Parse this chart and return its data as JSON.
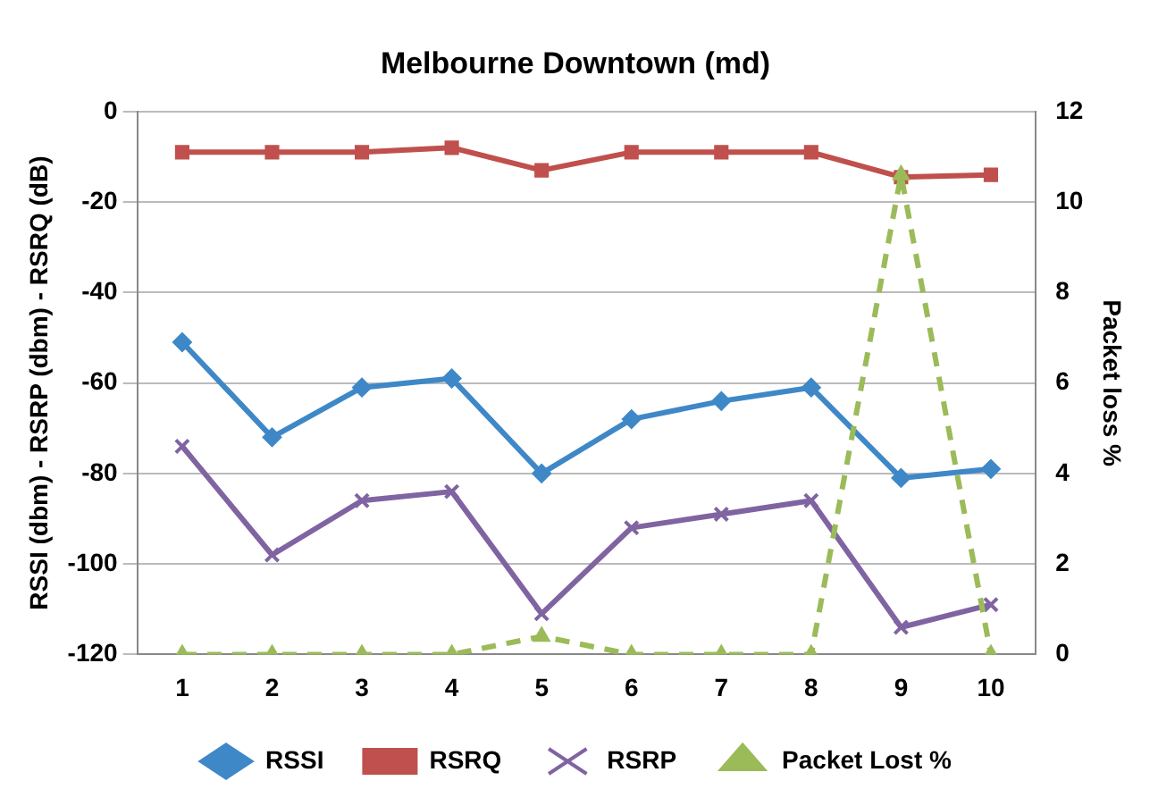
{
  "chart_data": {
    "type": "line",
    "title": "Melbourne Downtown (md)",
    "ylabel": "RSSI (dbm) - RSRP (dbm) - RSRQ (dB)",
    "y2label": "Packet loss %",
    "categories": [
      "1",
      "2",
      "3",
      "4",
      "5",
      "6",
      "7",
      "8",
      "9",
      "10"
    ],
    "series": [
      {
        "name": "RSSI",
        "color": "#3f88c8",
        "marker": "diamond",
        "values": [
          -51,
          -72,
          -61,
          -59,
          -80,
          -68,
          -64,
          -61,
          -81,
          -79
        ]
      },
      {
        "name": "RSRQ",
        "color": "#c0504d",
        "marker": "square",
        "values": [
          -9,
          -9,
          -9,
          -8,
          -13,
          -9,
          -9,
          -9,
          -14.5,
          -14
        ]
      },
      {
        "name": "RSRP",
        "color": "#8064a2",
        "marker": "cross",
        "values": [
          -74,
          -98,
          -86,
          -84,
          -111,
          -92,
          -89,
          -86,
          -114,
          -109
        ]
      },
      {
        "name": "Packet Lost %",
        "color": "#9bbb59",
        "marker": "triangle",
        "line_style": "dashed",
        "axis": "y2",
        "values": [
          0,
          0,
          0,
          0,
          0.4,
          0,
          0,
          0,
          10.6,
          0
        ]
      }
    ],
    "ylim": [
      -120,
      0
    ],
    "yticks": [
      -120,
      -100,
      -80,
      -60,
      -40,
      -20,
      0
    ],
    "y2lim": [
      0,
      12
    ],
    "y2ticks": [
      0,
      2,
      4,
      6,
      8,
      10,
      12
    ],
    "grid": "y",
    "legend": "bottom"
  }
}
